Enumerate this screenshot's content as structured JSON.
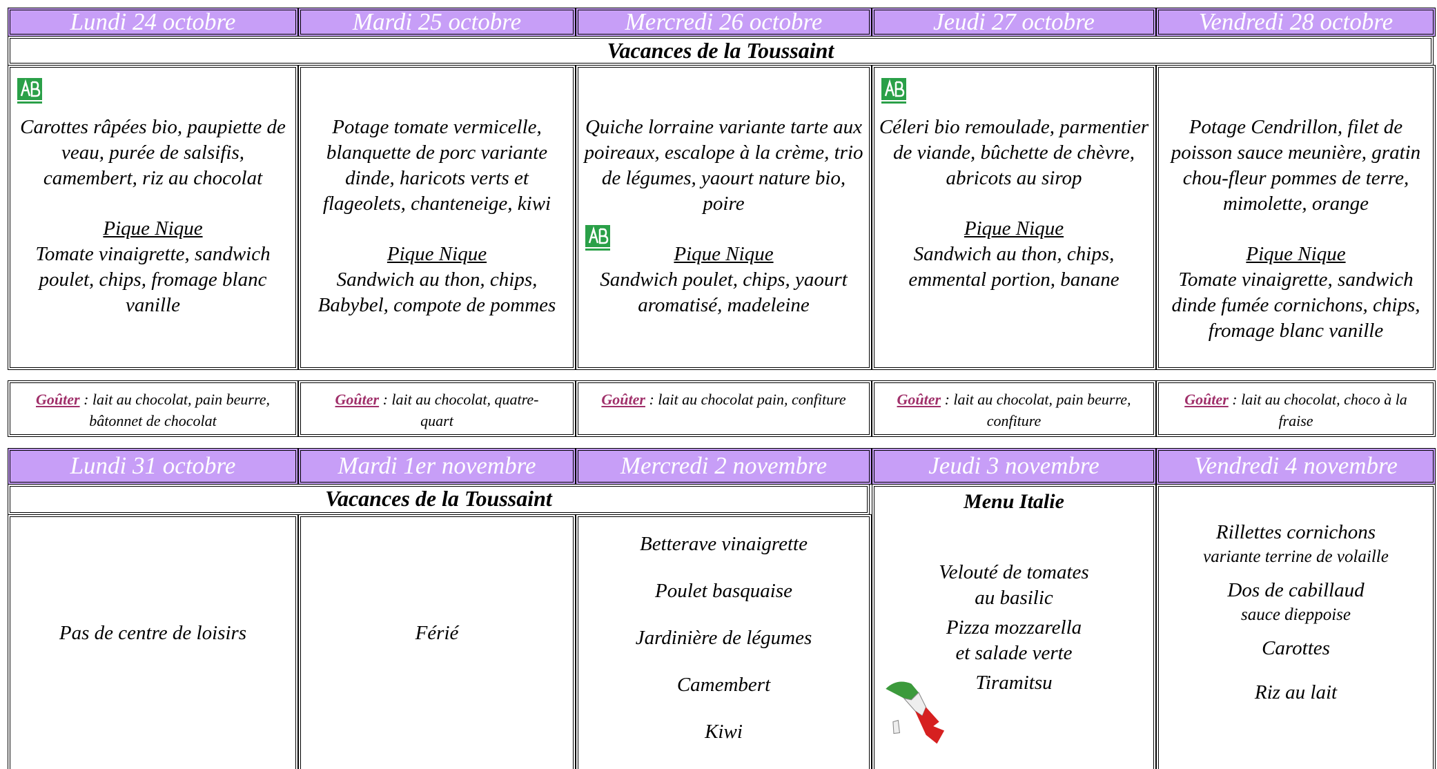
{
  "week1": {
    "days": [
      "Lundi 24 octobre",
      "Mardi 25 octobre",
      "Mercredi 26 octobre",
      "Jeudi 27 octobre",
      "Vendredi 28 octobre"
    ],
    "banner": "Vacances de la Toussaint",
    "menus": [
      {
        "lunch": "Carottes râpées bio, paupiette de veau, purée de salsifis, camembert, riz au chocolat",
        "picnic_title": "Pique Nique",
        "picnic": "Tomate vinaigrette, sandwich poulet, chips, fromage blanc vanille"
      },
      {
        "lunch": "Potage tomate vermicelle, blanquette de porc variante dinde, haricots verts et flageolets, chanteneige, kiwi",
        "picnic_title": "Pique Nique",
        "picnic": "Sandwich au thon, chips, Babybel, compote de pommes"
      },
      {
        "lunch": "Quiche lorraine variante tarte aux poireaux, escalope à la crème, trio de légumes, yaourt nature bio, poire",
        "picnic_title": "Pique Nique",
        "picnic": "Sandwich poulet, chips, yaourt aromatisé, madeleine"
      },
      {
        "lunch": "Céleri bio remoulade, parmentier de viande, bûchette de chèvre, abricots au sirop",
        "picnic_title": "Pique Nique",
        "picnic": "Sandwich au thon, chips, emmental portion, banane"
      },
      {
        "lunch": "Potage Cendrillon, filet de poisson sauce meunière, gratin chou-fleur pommes de terre, mimolette, orange",
        "picnic_title": "Pique Nique",
        "picnic": "Tomate vinaigrette, sandwich dinde fumée cornichons, chips, fromage blanc vanille"
      }
    ],
    "snacks": [
      {
        "label": "Goûter",
        "text": " : lait au chocolat,  pain beurre, bâtonnet de chocolat"
      },
      {
        "label": "Goûter",
        "text": " : lait au chocolat, quatre-quart"
      },
      {
        "label": "Goûter",
        "text": " : lait au chocolat pain, confiture"
      },
      {
        "label": "Goûter",
        "text": " : lait au chocolat, pain beurre, confiture"
      },
      {
        "label": "Goûter",
        "text": " : lait au chocolat, choco à la fraise"
      }
    ]
  },
  "week2": {
    "days": [
      "Lundi 31 octobre",
      "Mardi 1er novembre",
      "Mercredi 2 novembre",
      "Jeudi 3 novembre",
      "Vendredi 4 novembre"
    ],
    "banner": "Vacances de la Toussaint",
    "monday": "Pas de centre de loisirs",
    "tuesday": "Férié",
    "wednesday": [
      "Betterave vinaigrette",
      "Poulet basquaise",
      "Jardinière de légumes",
      "Camembert",
      "Kiwi"
    ],
    "thursday": {
      "title": "Menu Italie",
      "items": [
        [
          "Velouté de tomates",
          "au basilic"
        ],
        [
          "Pizza mozzarella",
          "et salade verte"
        ],
        [
          "Tiramitsu"
        ]
      ]
    },
    "friday": [
      {
        "main": "Rillettes cornichons",
        "sub": "variante terrine de volaille"
      },
      {
        "main": "Dos de cabillaud",
        "sub": "sauce dieppoise"
      },
      {
        "main": "Carottes"
      },
      {
        "main": "Riz au lait"
      }
    ]
  }
}
